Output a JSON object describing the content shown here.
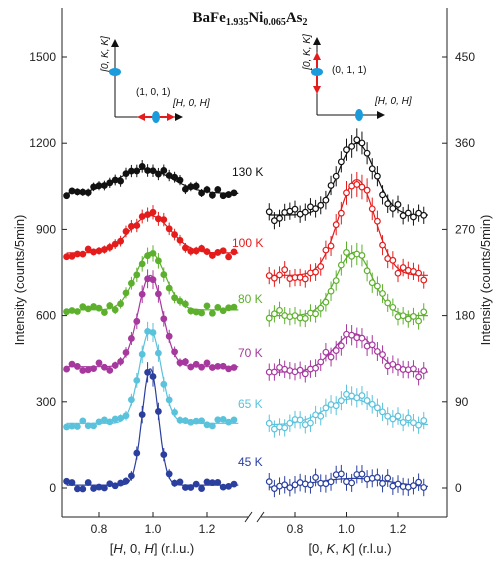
{
  "chart_data": {
    "type": "scatter",
    "title_parts": [
      "BaFe",
      "1.935",
      "Ni",
      "0.065",
      "As",
      "2"
    ],
    "ylabel": "Intensity (counts/5min)",
    "left_panel": {
      "xlabel_parts": [
        "[",
        "H",
        ", 0, ",
        "H",
        "] (r.l.u.)"
      ],
      "xlim": [
        0.65,
        1.33
      ],
      "ylim": [
        -100,
        1700
      ],
      "x_ticks": [
        0.8,
        1.0,
        1.2
      ],
      "x_tick_labels": [
        "0.8",
        "1.0",
        "1.2"
      ],
      "y_ticks": [
        0,
        300,
        600,
        900,
        1200,
        1500
      ],
      "y_tick_labels": [
        "0",
        "300",
        "600",
        "900",
        "1200",
        "1500"
      ],
      "inset": {
        "vertical_axis_label": "[0, K, K]",
        "horizontal_axis_label": "[H, 0, H]",
        "peak_label": "(1, 0, 1)",
        "arrow_direction": "horizontal"
      }
    },
    "right_panel": {
      "xlabel_parts": [
        "[0, ",
        "K",
        ", ",
        "K",
        "] (r.l.u.)"
      ],
      "xlim": [
        0.65,
        1.33
      ],
      "ylim": [
        -30,
        510
      ],
      "x_ticks": [
        0.8,
        1.0,
        1.2
      ],
      "x_tick_labels": [
        "0.8",
        "1.0",
        "1.2"
      ],
      "y_ticks": [
        0,
        90,
        180,
        270,
        360,
        450
      ],
      "y_tick_labels": [
        "0",
        "90",
        "180",
        "270",
        "360",
        "450"
      ],
      "inset": {
        "vertical_axis_label": "[0, K, K]",
        "horizontal_axis_label": "[H, 0, H]",
        "peak_label": "(0, 1, 1)",
        "arrow_direction": "vertical"
      }
    },
    "series": [
      {
        "name": "130 K",
        "color": "#111111",
        "left": {
          "base": 1025,
          "amp": 85,
          "center": 0.97,
          "sigma": 0.1
        },
        "right": {
          "base": 285,
          "amp": 75,
          "center": 1.04,
          "sigma": 0.07
        }
      },
      {
        "name": "100 K",
        "color": "#e41c1c",
        "left": {
          "base": 818,
          "amp": 130,
          "center": 0.99,
          "sigma": 0.075
        },
        "right": {
          "base": 222,
          "amp": 100,
          "center": 1.04,
          "sigma": 0.07
        }
      },
      {
        "name": "80 K",
        "color": "#5db02d",
        "left": {
          "base": 620,
          "amp": 200,
          "center": 0.99,
          "sigma": 0.055
        },
        "right": {
          "base": 180,
          "amp": 66,
          "center": 1.03,
          "sigma": 0.07
        }
      },
      {
        "name": "70 K",
        "color": "#a6389e",
        "left": {
          "base": 422,
          "amp": 318,
          "center": 0.99,
          "sigma": 0.045
        },
        "right": {
          "base": 121,
          "amp": 40,
          "center": 1.03,
          "sigma": 0.08
        }
      },
      {
        "name": "65 K",
        "color": "#5bc2dc",
        "left": {
          "base": 225,
          "amp": 325,
          "center": 0.99,
          "sigma": 0.04
        },
        "right": {
          "base": 66,
          "amp": 27,
          "center": 1.02,
          "sigma": 0.1
        }
      },
      {
        "name": "45 K",
        "color": "#2a3f9e",
        "left": {
          "base": 10,
          "amp": 405,
          "center": 0.99,
          "sigma": 0.03
        },
        "right": {
          "base": 0,
          "amp": 10,
          "center": 1.03,
          "sigma": 0.15
        }
      }
    ]
  }
}
